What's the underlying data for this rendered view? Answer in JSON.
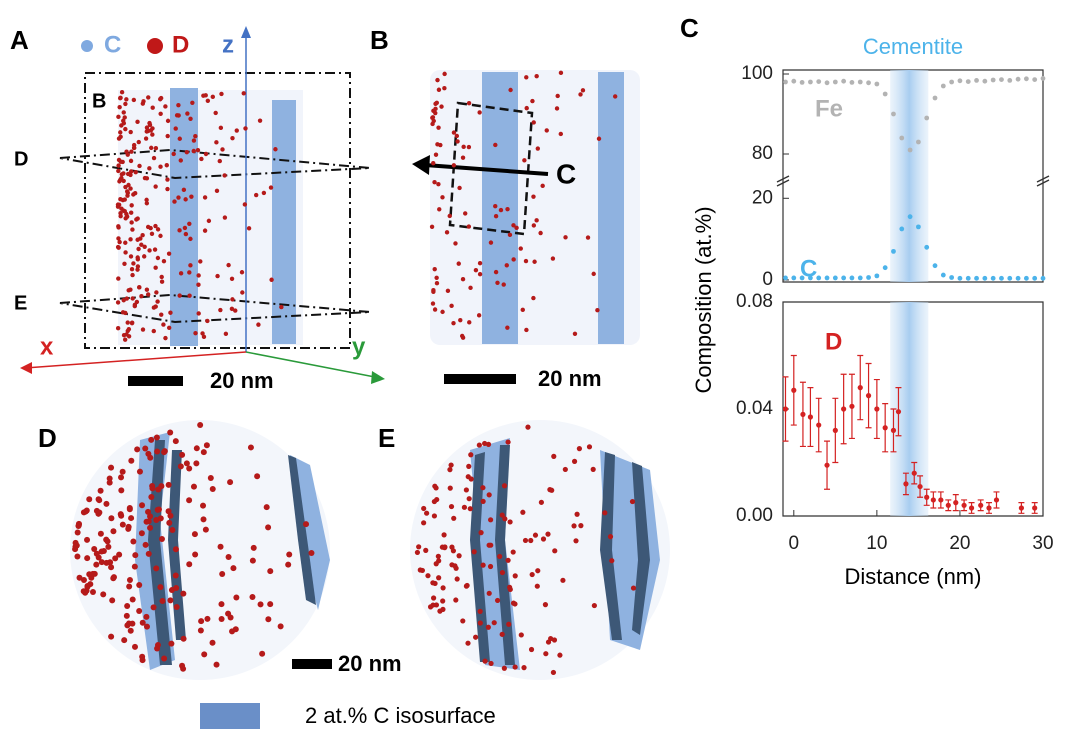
{
  "figure": {
    "panel_labels": [
      "A",
      "B",
      "C",
      "D",
      "E"
    ],
    "panel_a": {
      "legend_c": "C",
      "legend_d": "D",
      "axis_z": "z",
      "axis_x": "x",
      "axis_y": "y",
      "box_b": "B",
      "plane_d": "D",
      "plane_e": "E",
      "scale": "20 nm"
    },
    "panel_b": {
      "arrow_label": "C",
      "scale": "20 nm"
    },
    "panel_de": {
      "scale": "20 nm",
      "legend": "2 at.% C isosurface"
    }
  },
  "chart_data": [
    {
      "type": "scatter",
      "title": "Cementite",
      "x": [
        -1,
        0,
        1,
        2,
        3,
        4,
        5,
        6,
        7,
        8,
        9,
        10,
        11,
        12,
        13,
        14,
        15,
        16,
        17,
        18,
        19,
        20,
        21,
        22,
        23,
        24,
        25,
        26,
        27,
        28,
        29,
        30
      ],
      "series": [
        {
          "name": "Fe",
          "color": "#b3b3b3",
          "values": [
            98,
            98.2,
            97.9,
            98,
            98.1,
            97.8,
            98,
            98.2,
            97.9,
            98,
            97.8,
            97.5,
            95,
            90,
            84,
            81,
            83,
            89,
            94,
            97,
            98,
            98.3,
            98.1,
            98.4,
            98.2,
            98.5,
            98.6,
            98.4,
            98.7,
            98.8,
            98.6,
            98.9
          ]
        }
      ],
      "xlim": [
        -1.3,
        30
      ],
      "ylim": [
        74,
        101
      ],
      "yticks": [
        80,
        100
      ],
      "highlight_range": [
        11.6,
        16.2
      ]
    },
    {
      "type": "scatter",
      "x": [
        -1,
        0,
        1,
        2,
        3,
        4,
        5,
        6,
        7,
        8,
        9,
        10,
        11,
        12,
        13,
        14,
        15,
        16,
        17,
        18,
        19,
        20,
        21,
        22,
        23,
        24,
        25,
        26,
        27,
        28,
        29,
        30
      ],
      "series": [
        {
          "name": "C",
          "color": "#4cb3ea",
          "values": [
            0.5,
            0.5,
            0.5,
            0.5,
            0.5,
            0.5,
            0.5,
            0.5,
            0.5,
            0.5,
            0.6,
            1,
            3,
            7,
            12.5,
            15.5,
            13,
            8,
            3.5,
            1.2,
            0.6,
            0.4,
            0.4,
            0.4,
            0.4,
            0.4,
            0.4,
            0.4,
            0.4,
            0.4,
            0.4,
            0.4
          ]
        }
      ],
      "xlim": [
        -1.3,
        30
      ],
      "ylim": [
        -0.5,
        23.5
      ],
      "yticks": [
        0,
        20
      ],
      "highlight_range": [
        11.6,
        16.2
      ]
    },
    {
      "type": "errorbar",
      "x_label": "Distance (nm)",
      "y_label": "Composition (at.%)",
      "x": [
        -1,
        0,
        1.1,
        2,
        3,
        4,
        5,
        6,
        7,
        8,
        9,
        10,
        11,
        12,
        12.6,
        13.5,
        14.5,
        15.2,
        16,
        16.8,
        17.7,
        18.6,
        19.5,
        20.5,
        21.4,
        22.5,
        23.5,
        24.4,
        27.4,
        29
      ],
      "series": [
        {
          "name": "D",
          "color": "#d42222",
          "values": [
            0.04,
            0.047,
            0.038,
            0.037,
            0.034,
            0.019,
            0.032,
            0.04,
            0.041,
            0.048,
            0.045,
            0.04,
            0.033,
            0.032,
            0.039,
            0.012,
            0.016,
            0.011,
            0.007,
            0.006,
            0.006,
            0.004,
            0.005,
            0.004,
            0.003,
            0.004,
            0.003,
            0.006,
            0.003,
            0.003
          ],
          "errors": [
            0.012,
            0.013,
            0.012,
            0.011,
            0.01,
            0.009,
            0.012,
            0.013,
            0.012,
            0.012,
            0.012,
            0.011,
            0.009,
            0.008,
            0.009,
            0.004,
            0.004,
            0.004,
            0.003,
            0.003,
            0.003,
            0.002,
            0.003,
            0.002,
            0.002,
            0.002,
            0.002,
            0.003,
            0.002,
            0.002
          ]
        }
      ],
      "xlim": [
        -1.3,
        30
      ],
      "ylim": [
        0,
        0.08
      ],
      "xticks": [
        0,
        10,
        20,
        30
      ],
      "yticks": [
        {
          "value": 0,
          "label": "0.00"
        },
        {
          "value": 0.04,
          "label": "0.04"
        },
        {
          "value": 0.08,
          "label": "0.08"
        }
      ],
      "highlight_range": [
        11.6,
        16.2
      ]
    }
  ]
}
